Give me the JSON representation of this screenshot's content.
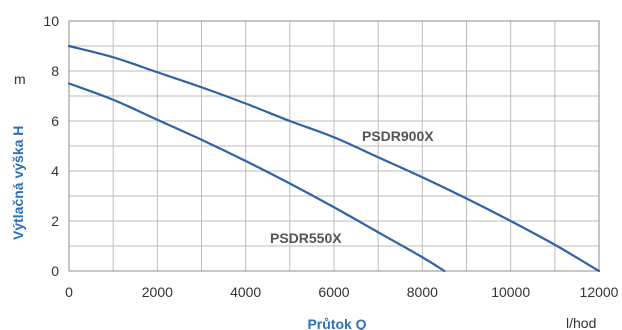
{
  "chart_data": {
    "type": "line",
    "xlabel": "Průtok Q",
    "xunit": "l/hod",
    "ylabel": "Výtlačná výška H",
    "yunit": "m",
    "xlim": [
      0,
      12000
    ],
    "ylim": [
      0,
      10
    ],
    "xticks": [
      0,
      2000,
      4000,
      6000,
      8000,
      10000,
      12000
    ],
    "yticks": [
      0,
      2,
      4,
      6,
      8,
      10
    ],
    "grid": true,
    "colors": {
      "series": "#2f63a5",
      "axis_title": "#2f6fb5"
    },
    "series": [
      {
        "name": "PSDR900X",
        "x": [
          0,
          1000,
          2000,
          3000,
          4000,
          5000,
          6000,
          7000,
          8000,
          9000,
          10000,
          11000,
          12000
        ],
        "y": [
          9.0,
          8.55,
          7.95,
          7.35,
          6.7,
          6.0,
          5.35,
          4.55,
          3.75,
          2.9,
          2.0,
          1.05,
          0.0
        ]
      },
      {
        "name": "PSDR550X",
        "x": [
          0,
          1000,
          2000,
          3000,
          4000,
          5000,
          6000,
          7000,
          8000,
          8500
        ],
        "y": [
          7.5,
          6.85,
          6.05,
          5.25,
          4.4,
          3.5,
          2.55,
          1.55,
          0.55,
          0.0
        ]
      }
    ]
  }
}
